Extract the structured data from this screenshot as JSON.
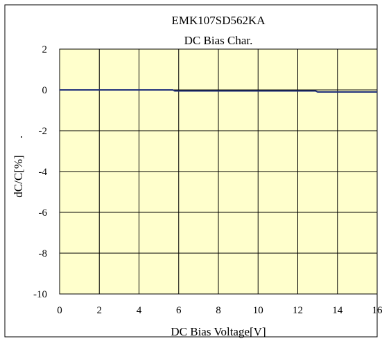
{
  "chart_data": {
    "type": "line",
    "title": "EMK107SD562KA",
    "subtitle": "DC Bias Char.",
    "xlabel": "DC Bias Voltage[V]",
    "ylabel": "dC/C[%]",
    "ylabel_suffix": ".",
    "xlim": [
      0,
      16
    ],
    "ylim": [
      -10,
      2
    ],
    "x_ticks": [
      0,
      2,
      4,
      6,
      8,
      10,
      12,
      14,
      16
    ],
    "y_ticks": [
      2,
      0,
      -2,
      -4,
      -6,
      -8,
      -10
    ],
    "x_tick_labels": [
      "0",
      "2",
      "4",
      "6",
      "8",
      "10",
      "12",
      "14",
      "16"
    ],
    "y_tick_labels": [
      "2",
      "0",
      "-2",
      "-4",
      "-6",
      "-8",
      "-10"
    ],
    "grid": true,
    "plot_background": "#ffffcc",
    "grid_color": "#000000",
    "line_color": "#1f2f7a",
    "series": [
      {
        "x": [
          0,
          2,
          4,
          5.7,
          5.8,
          8,
          10,
          12,
          12.9,
          13.0,
          14,
          16
        ],
        "y": [
          0,
          0,
          0,
          0,
          -0.05,
          -0.05,
          -0.05,
          -0.05,
          -0.05,
          -0.1,
          -0.1,
          -0.1
        ]
      }
    ]
  }
}
